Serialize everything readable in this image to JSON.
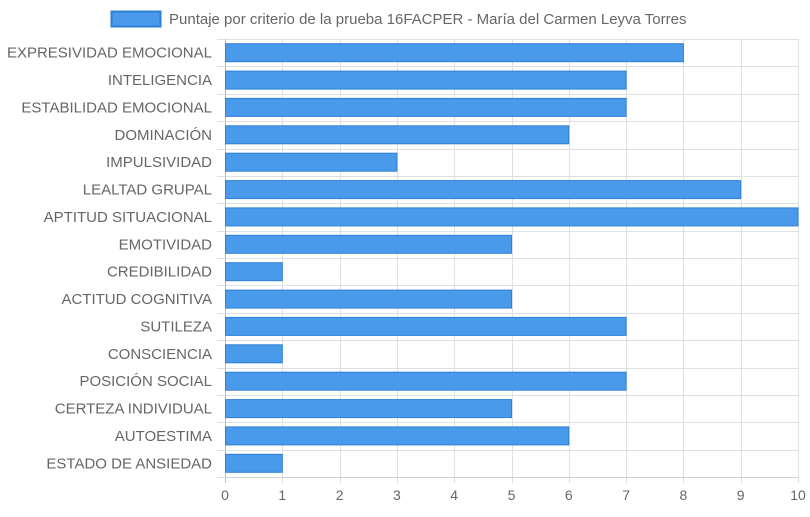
{
  "chart_data": {
    "type": "bar",
    "orientation": "horizontal",
    "legend": {
      "position": "top",
      "entries": [
        "Puntaje por criterio de la prueba 16FACPER - María del Carmen Leyva Torres"
      ]
    },
    "categories": [
      "EXPRESIVIDAD EMOCIONAL",
      "INTELIGENCIA",
      "ESTABILIDAD EMOCIONAL",
      "DOMINACIÓN",
      "IMPULSIVIDAD",
      "LEALTAD GRUPAL",
      "APTITUD SITUACIONAL",
      "EMOTIVIDAD",
      "CREDIBILIDAD",
      "ACTITUD COGNITIVA",
      "SUTILEZA",
      "CONSCIENCIA",
      "POSICIÓN SOCIAL",
      "CERTEZA INDIVIDUAL",
      "AUTOESTIMA",
      "ESTADO DE ANSIEDAD"
    ],
    "series": [
      {
        "name": "Puntaje por criterio de la prueba 16FACPER - María del Carmen Leyva Torres",
        "values": [
          8,
          7,
          7,
          6,
          3,
          9,
          10,
          5,
          1,
          5,
          7,
          1,
          7,
          5,
          6,
          1
        ],
        "color": "#4a9aec",
        "border_color": "#2f7fd6"
      }
    ],
    "xlim": [
      0,
      10
    ],
    "xticks": [
      "0",
      "1",
      "2",
      "3",
      "4",
      "5",
      "6",
      "7",
      "8",
      "9",
      "10"
    ],
    "grid": true,
    "gridline_color": "#e0e0e0",
    "axis_text_color": "#666666"
  }
}
